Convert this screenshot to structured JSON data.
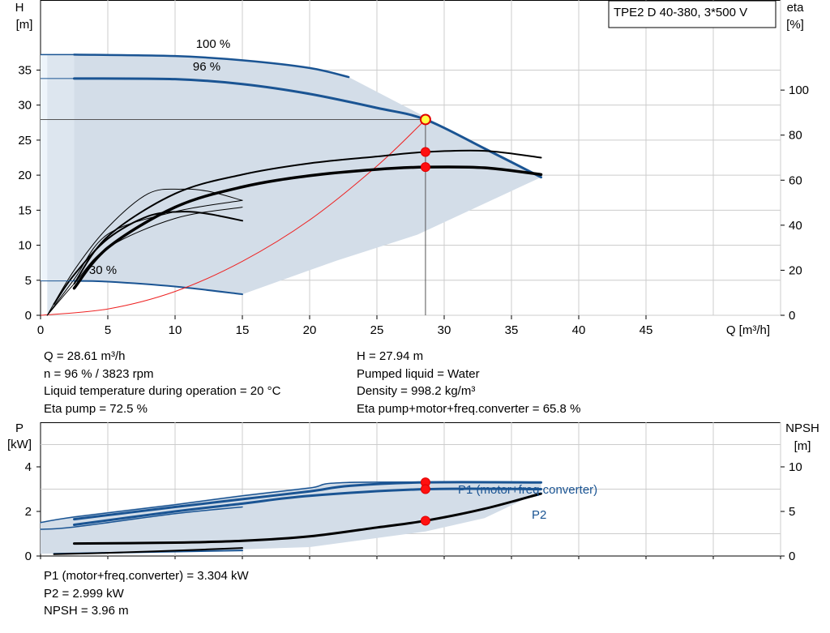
{
  "chart_data": [
    {
      "type": "line",
      "model_label": "TPE2 D 40-380, 3*500 V",
      "xlabel": "Q [m³/h]",
      "ylabel_left": [
        "H",
        "[m]"
      ],
      "ylabel_right": [
        "eta",
        "[%]"
      ],
      "xlim": [
        0,
        55
      ],
      "ylim": [
        0,
        45
      ],
      "ylim_right": [
        0,
        140
      ],
      "x_ticks": [
        0,
        5,
        10,
        15,
        20,
        25,
        30,
        35,
        40,
        45
      ],
      "y_ticks": [
        0,
        5,
        10,
        15,
        20,
        25,
        30,
        35
      ],
      "y_right_ticks": [
        0,
        20,
        40,
        60,
        80,
        100
      ],
      "grid": true,
      "speed_labels": [
        "100 %",
        "96 %",
        "30 %"
      ],
      "envelope": [
        [
          0,
          37.2
        ],
        [
          22.9,
          34.0
        ],
        [
          37.2,
          19.7
        ],
        [
          15,
          3.0
        ],
        [
          0,
          4.9
        ]
      ],
      "series": [
        {
          "name": "100 %",
          "axis": "H",
          "color": "#1a5493",
          "width": 2.5,
          "x": [
            2.5,
            10,
            15,
            20,
            22.9
          ],
          "y": [
            37.2,
            37.0,
            36.4,
            35.3,
            34.0
          ]
        },
        {
          "name": "96 %",
          "axis": "H",
          "color": "#1a5493",
          "width": 3,
          "x": [
            2.5,
            10,
            15,
            20,
            25,
            28.61,
            33,
            37.2
          ],
          "y": [
            33.8,
            33.7,
            33.0,
            31.6,
            29.6,
            27.94,
            23.8,
            19.7
          ]
        },
        {
          "name": "30 %",
          "axis": "H",
          "color": "#1a5493",
          "width": 2,
          "x": [
            2.5,
            5,
            10,
            15
          ],
          "y": [
            4.9,
            4.8,
            4.1,
            3.0
          ]
        },
        {
          "axis": "H",
          "color": "#ee2222",
          "width": 1,
          "x": [
            0,
            5,
            10,
            15,
            20,
            25,
            28.61
          ],
          "y": [
            0,
            0.9,
            3.4,
            7.7,
            13.6,
            21.3,
            27.94
          ]
        },
        {
          "axis": "eta",
          "color": "#000000",
          "width": 2,
          "x": [
            2.5,
            5,
            10,
            15,
            20,
            25,
            28.61,
            33,
            37.2
          ],
          "y": [
            14,
            35,
            54,
            62.5,
            67.5,
            70.5,
            72.5,
            73,
            70
          ]
        },
        {
          "axis": "eta",
          "color": "#000000",
          "width": 3.5,
          "x": [
            2.5,
            5,
            10,
            15,
            20,
            25,
            28.61,
            33,
            37.2
          ],
          "y": [
            12,
            30,
            48,
            57,
            62,
            64.8,
            65.8,
            65.5,
            62.5
          ]
        },
        {
          "axis": "eta",
          "color": "#000000",
          "width": 1,
          "x": [
            0.5,
            2.5,
            5,
            8,
            10.5,
            12.5,
            15
          ],
          "y": [
            0,
            20,
            39,
            54,
            56,
            55,
            51
          ]
        },
        {
          "axis": "eta",
          "color": "#000000",
          "width": 2,
          "x": [
            1,
            2.5,
            5,
            8,
            10.5,
            12.5,
            15
          ],
          "y": [
            5,
            18,
            34,
            44,
            46,
            45,
            42
          ]
        },
        {
          "axis": "eta",
          "color": "#000000",
          "width": 1,
          "x": [
            0.5,
            2.5,
            5,
            10,
            15
          ],
          "y": [
            0,
            16,
            36,
            46,
            51
          ]
        },
        {
          "axis": "eta",
          "color": "#000000",
          "width": 1,
          "x": [
            0.5,
            2.5,
            5,
            10,
            15
          ],
          "y": [
            0,
            14,
            30,
            43,
            48
          ]
        }
      ],
      "operating_point": {
        "x": 28.61,
        "H": 27.94,
        "eta": [
          72.5,
          65.8
        ]
      }
    },
    {
      "type": "line",
      "ylabel_left": [
        "P",
        "[kW]"
      ],
      "ylabel_right": [
        "NPSH",
        "[m]"
      ],
      "xlim": [
        0,
        55
      ],
      "ylim": [
        0,
        6
      ],
      "ylim_right": [
        0,
        15
      ],
      "y_ticks": [
        0,
        2,
        4
      ],
      "y_right_ticks": [
        0,
        5,
        10
      ],
      "grid": true,
      "envelope": [
        [
          0,
          1.5
        ],
        [
          23,
          3.35
        ],
        [
          37.2,
          3.35
        ],
        [
          37.2,
          2.9
        ],
        [
          20,
          0.2
        ],
        [
          15,
          0.25
        ],
        [
          0,
          0.1
        ]
      ],
      "series": [
        {
          "name": "P1 (motor+freq.converter)",
          "label": "P1 (motor+freq.converter)",
          "axis": "P",
          "color": "#1a5493",
          "width": 3,
          "x": [
            2.5,
            10,
            15,
            20,
            23,
            28.61,
            37.2
          ],
          "y": [
            1.65,
            2.2,
            2.55,
            2.9,
            3.15,
            3.304,
            3.3
          ]
        },
        {
          "axis": "P",
          "color": "#1a5493",
          "width": 3,
          "x": [
            2.5,
            10,
            15,
            20,
            28.61,
            37.2
          ],
          "y": [
            1.4,
            2.0,
            2.35,
            2.7,
            2.999,
            3.0
          ]
        },
        {
          "axis": "P",
          "color": "#1a5493",
          "width": 1.5,
          "x": [
            0,
            2.5,
            10,
            15,
            20,
            23,
            37.2
          ],
          "y": [
            1.5,
            1.75,
            2.3,
            2.7,
            3.05,
            3.3,
            3.3
          ]
        },
        {
          "axis": "P",
          "color": "#1a5493",
          "width": 1.5,
          "x": [
            0,
            2.5,
            10,
            15
          ],
          "y": [
            1.2,
            1.3,
            1.9,
            2.2
          ]
        },
        {
          "axis": "P",
          "color": "#1a5493",
          "width": 2,
          "x": [
            1,
            15
          ],
          "y": [
            0.1,
            0.25
          ]
        },
        {
          "name": "P2",
          "label": "P2",
          "axis": "NPSH",
          "color": "#000000",
          "width": 3,
          "x": [
            2.5,
            10,
            15,
            20,
            25,
            28.61,
            33,
            37.2
          ],
          "y": [
            1.4,
            1.5,
            1.7,
            2.2,
            3.2,
            3.96,
            5.3,
            7.0
          ]
        },
        {
          "axis": "NPSH",
          "color": "#000000",
          "width": 2,
          "x": [
            1,
            5,
            10,
            15
          ],
          "y": [
            0.2,
            0.35,
            0.6,
            0.9
          ]
        }
      ],
      "operating_points": [
        {
          "x": 28.61,
          "P": 3.304
        },
        {
          "x": 28.61,
          "P": 2.999
        },
        {
          "x": 28.61,
          "NPSH": 3.96
        }
      ]
    }
  ],
  "results": {
    "left": [
      "Q = 28.61 m³/h",
      "n = 96 % / 3823 rpm",
      "Liquid temperature during operation = 20 °C",
      "Eta pump = 72.5 %"
    ],
    "right": [
      "H = 27.94 m",
      "Pumped liquid = Water",
      "Density = 998.2 kg/m³",
      "Eta pump+motor+freq.converter = 65.8 %"
    ],
    "bottom": [
      "P1 (motor+freq.converter) = 3.304 kW",
      "P2 = 2.999 kW",
      "NPSH = 3.96 m"
    ]
  }
}
